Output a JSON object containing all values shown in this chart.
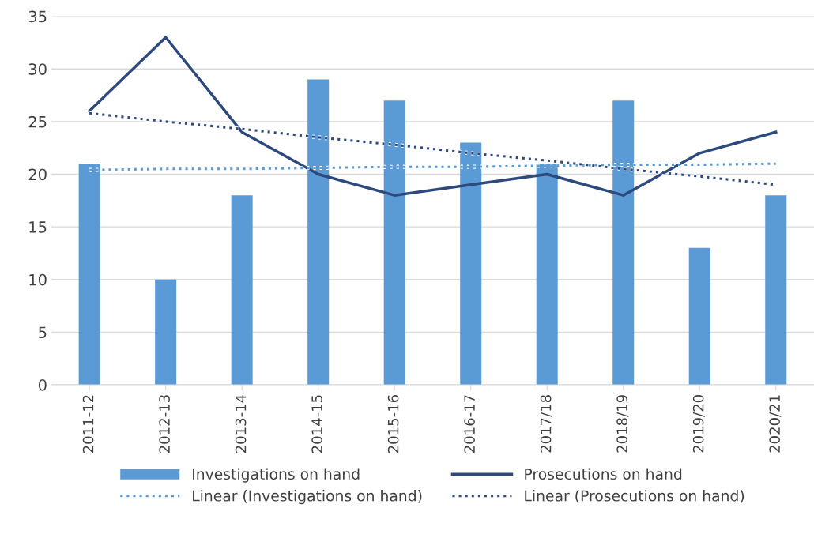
{
  "chart_data": {
    "type": "bar",
    "categories": [
      "2011-12",
      "2012-13",
      "2013-14",
      "2014-15",
      "2015-16",
      "2016-17",
      "2017/18",
      "2018/19",
      "2019/20",
      "2020/21"
    ],
    "series": [
      {
        "name": "Investigations on hand",
        "color": "#5b9bd5",
        "values": [
          21,
          10,
          18,
          29,
          27,
          23,
          21,
          27,
          13,
          18
        ]
      },
      {
        "name": "Prosecutions on hand",
        "type": "line",
        "color": "#2e4a7d",
        "line_style": "solid",
        "values": [
          26,
          33,
          24,
          20,
          18,
          19,
          20,
          18,
          22,
          24
        ]
      },
      {
        "name": "Linear (Investigations on hand)",
        "type": "line",
        "color": "#5b9bd5",
        "line_style": "dotted",
        "values": [
          20.4,
          20.5,
          20.5,
          20.6,
          20.7,
          20.7,
          20.8,
          20.9,
          20.9,
          21.0
        ]
      },
      {
        "name": "Linear (Prosecutions on hand)",
        "type": "line",
        "color": "#2e4a7d",
        "line_style": "dotted",
        "values": [
          25.8,
          25.0,
          24.3,
          23.5,
          22.8,
          22.0,
          21.3,
          20.5,
          19.8,
          19.0
        ]
      }
    ],
    "ylim": [
      0,
      35
    ],
    "yticks": [
      0,
      5,
      10,
      15,
      20,
      25,
      30,
      35
    ],
    "grid": "y",
    "legend": "bottom",
    "marker": "none"
  }
}
